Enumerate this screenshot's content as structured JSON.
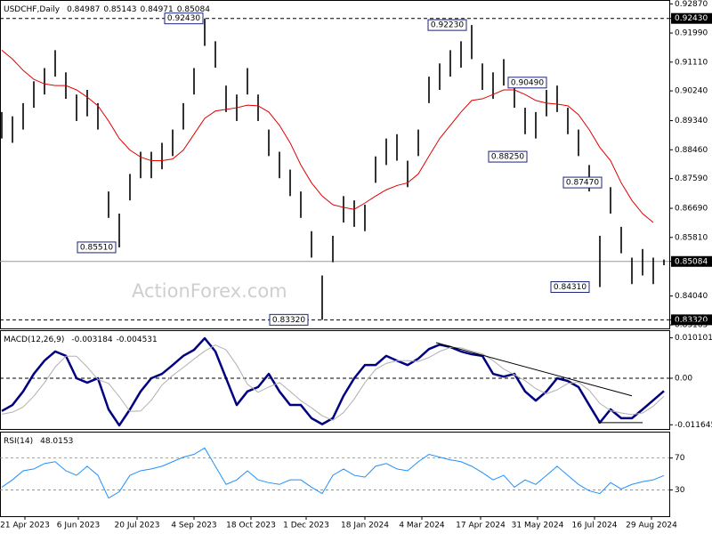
{
  "chart_data": [
    {
      "type": "ohlc",
      "title": "USDCHF,Daily",
      "header_values": [
        0.84987,
        0.85143,
        0.84971,
        0.85084
      ],
      "watermark": "ActionForex.com",
      "x": [
        0,
        6,
        12,
        18,
        24,
        30,
        36,
        42,
        48,
        54,
        60,
        66,
        72,
        78,
        84,
        90,
        96,
        102,
        108,
        114,
        120,
        126,
        132,
        138,
        144,
        150,
        156,
        162,
        168,
        174,
        180,
        186,
        192,
        198,
        204,
        210,
        216,
        222,
        228,
        234,
        240,
        246,
        252,
        258,
        264,
        270,
        276,
        282,
        288,
        294,
        300,
        306,
        312,
        318,
        324,
        330,
        336,
        342,
        348,
        354,
        360,
        366,
        372
      ],
      "high": [
        0.896,
        0.8947,
        0.8987,
        0.9053,
        0.9093,
        0.9147,
        0.908,
        0.9013,
        0.9027,
        0.8987,
        0.872,
        0.8653,
        0.8773,
        0.884,
        0.884,
        0.8867,
        0.8907,
        0.8987,
        0.9093,
        0.9243,
        0.9174,
        0.904,
        0.9013,
        0.9093,
        0.9013,
        0.8907,
        0.884,
        0.8786,
        0.872,
        0.86,
        0.8466,
        0.8586,
        0.8706,
        0.8693,
        0.868,
        0.8826,
        0.888,
        0.8893,
        0.8813,
        0.8907,
        0.9067,
        0.9107,
        0.9147,
        0.9174,
        0.9223,
        0.9107,
        0.908,
        0.912,
        0.9053,
        0.8973,
        0.896,
        0.9027,
        0.904,
        0.8973,
        0.8907,
        0.88,
        0.8586,
        0.8733,
        0.8613,
        0.852,
        0.8546,
        0.852,
        0.85143
      ],
      "low": [
        0.888,
        0.8867,
        0.8907,
        0.8973,
        0.9013,
        0.9067,
        0.9,
        0.8933,
        0.8947,
        0.8907,
        0.864,
        0.8551,
        0.8693,
        0.876,
        0.876,
        0.8787,
        0.8827,
        0.8907,
        0.9013,
        0.916,
        0.9094,
        0.896,
        0.8933,
        0.9013,
        0.8933,
        0.8827,
        0.876,
        0.8706,
        0.864,
        0.852,
        0.8332,
        0.8506,
        0.8626,
        0.8613,
        0.86,
        0.8746,
        0.88,
        0.8813,
        0.8733,
        0.8827,
        0.8987,
        0.9027,
        0.9067,
        0.9094,
        0.912,
        0.9027,
        0.9,
        0.904,
        0.8973,
        0.8893,
        0.888,
        0.8947,
        0.896,
        0.8893,
        0.8827,
        0.872,
        0.8431,
        0.8653,
        0.8533,
        0.844,
        0.8466,
        0.844,
        0.84971
      ],
      "bar_color": "#000000",
      "moving_average": {
        "color": "#e00000",
        "values": [
          0.9147,
          0.912,
          0.9086,
          0.9059,
          0.9045,
          0.904,
          0.904,
          0.9027,
          0.9005,
          0.8979,
          0.8933,
          0.888,
          0.8845,
          0.8824,
          0.8813,
          0.8813,
          0.8818,
          0.8845,
          0.8893,
          0.8941,
          0.8963,
          0.8968,
          0.8973,
          0.8981,
          0.8979,
          0.896,
          0.892,
          0.8867,
          0.88,
          0.8746,
          0.8706,
          0.868,
          0.8672,
          0.8666,
          0.8685,
          0.8706,
          0.8725,
          0.8738,
          0.8746,
          0.8773,
          0.8827,
          0.888,
          0.892,
          0.896,
          0.8995,
          0.9,
          0.9013,
          0.9027,
          0.9027,
          0.9013,
          0.8995,
          0.8987,
          0.8984,
          0.8979,
          0.8952,
          0.8907,
          0.8853,
          0.8813,
          0.8746,
          0.8693,
          0.8653,
          0.8626,
          null
        ]
      },
      "annotations": [
        {
          "label": "0.92430",
          "value": 0.9243,
          "x": 113
        },
        {
          "label": "0.92230",
          "value": 0.9223,
          "x": 261
        },
        {
          "label": "0.90490",
          "value": 0.9049,
          "x": 306
        },
        {
          "label": "0.88250",
          "value": 0.8825,
          "x": 295
        },
        {
          "label": "0.87470",
          "value": 0.8747,
          "x": 337
        },
        {
          "label": "0.85510",
          "value": 0.8551,
          "x": 64
        },
        {
          "label": "0.84310",
          "value": 0.8431,
          "x": 330
        },
        {
          "label": "0.83320",
          "value": 0.8332,
          "x": 172
        }
      ],
      "xlim": [
        -1,
        375
      ],
      "ylim": [
        0.8306,
        0.9296
      ],
      "yticks": [
        {
          "value": 0.9287,
          "label": "0.92870"
        },
        {
          "value": 0.9243,
          "label": "0.92430",
          "style": "dashed",
          "highlight": true
        },
        {
          "value": 0.9199,
          "label": "0.91990"
        },
        {
          "value": 0.9111,
          "label": "0.91110"
        },
        {
          "value": 0.9024,
          "label": "0.90240"
        },
        {
          "value": 0.8934,
          "label": "0.89340"
        },
        {
          "value": 0.8846,
          "label": "0.88460"
        },
        {
          "value": 0.8759,
          "label": "0.87590"
        },
        {
          "value": 0.8669,
          "label": "0.86690"
        },
        {
          "value": 0.8581,
          "label": "0.85810"
        },
        {
          "value": 0.85084,
          "style": "solid",
          "highlight": true
        },
        {
          "value": 0.8404,
          "label": "0.84040"
        },
        {
          "value": 0.8332,
          "label": "0.83320",
          "style": "dashed",
          "highlight": true
        },
        0.83165
      ],
      "grid": false
    },
    {
      "type": "macd",
      "title": "MACD(12,26,9)",
      "header_values": [
        -0.003184,
        -0.004531
      ],
      "x": [
        0,
        6,
        12,
        18,
        24,
        30,
        36,
        42,
        48,
        54,
        60,
        66,
        72,
        78,
        84,
        90,
        96,
        102,
        108,
        114,
        120,
        126,
        132,
        138,
        144,
        150,
        156,
        162,
        168,
        174,
        180,
        186,
        192,
        198,
        204,
        210,
        216,
        222,
        228,
        234,
        240,
        246,
        252,
        258,
        264,
        270,
        276,
        282,
        288,
        294,
        300,
        306,
        312,
        318,
        324,
        330,
        336,
        342,
        348,
        354,
        360,
        366,
        372
      ],
      "series": [
        {
          "color": "#000080",
          "width": 2.5,
          "values": [
            -0.0082,
            -0.0067,
            -0.0033,
            0.0011,
            0.0044,
            0.0067,
            0.0056,
            0,
            -0.0011,
            0,
            -0.0078,
            -0.0118,
            -0.0078,
            -0.0033,
            0,
            0.0011,
            0.0033,
            0.0056,
            0.0071,
            0.01,
            0.0067,
            0,
            -0.0067,
            -0.0033,
            -0.0022,
            0.0011,
            -0.0033,
            -0.0067,
            -0.0067,
            -0.01,
            -0.0115,
            -0.01,
            -0.0044,
            0,
            0.0033,
            0.0033,
            0.0056,
            0.0044,
            0.0033,
            0.0049,
            0.0073,
            0.0084,
            0.0078,
            0.0067,
            0.006,
            0.0056,
            0.0011,
            0.0004,
            0.0011,
            -0.0033,
            -0.0056,
            -0.0033,
            0,
            -0.0007,
            -0.0022,
            -0.0067,
            -0.0111,
            -0.0078,
            -0.01,
            -0.01,
            -0.0078,
            -0.0055,
            -0.0032
          ]
        },
        {
          "color": "#b0b0b0",
          "width": 1,
          "values": [
            -0.009,
            -0.0085,
            -0.0072,
            -0.0045,
            -0.0011,
            0.0028,
            0.0055,
            0.0055,
            0.0028,
            -0.0003,
            -0.0013,
            -0.0046,
            -0.0083,
            -0.0082,
            -0.0055,
            -0.0017,
            0.0007,
            0.0027,
            0.0048,
            0.0068,
            0.0083,
            0.0071,
            0.0033,
            -0.0015,
            -0.0035,
            -0.0022,
            -0.0011,
            -0.0033,
            -0.0056,
            -0.0074,
            -0.0094,
            -0.0105,
            -0.0086,
            -0.0052,
            -0.0011,
            0.0022,
            0.0037,
            0.0044,
            0.0044,
            0.0042,
            0.0052,
            0.0067,
            0.0077,
            0.0076,
            0.0068,
            0.0061,
            0.0044,
            0.0023,
            0.0009,
            -0.0006,
            -0.0026,
            -0.0039,
            -0.0029,
            -0.0013,
            -0.001,
            -0.003,
            -0.0063,
            -0.0081,
            -0.0087,
            -0.0091,
            -0.0087,
            -0.007,
            -0.0045
          ]
        }
      ],
      "trendlines": [
        {
          "x": [
            244,
            354
          ],
          "y": [
            0.0089,
            -0.0044
          ]
        },
        {
          "x": [
            335,
            360
          ],
          "y": [
            -0.0111,
            -0.0111
          ]
        }
      ],
      "xlim": [
        -1,
        375
      ],
      "ylim": [
        -0.0127,
        0.0118
      ],
      "yticks": [
        0.010101,
        {
          "value": 0,
          "label": "0.00",
          "style": "dashed"
        },
        -0.011645
      ],
      "grid": false
    },
    {
      "type": "line",
      "title": "RSI(14)",
      "header_values": [
        48.0153
      ],
      "x": [
        0,
        6,
        12,
        18,
        24,
        30,
        36,
        42,
        48,
        54,
        60,
        66,
        72,
        78,
        84,
        90,
        96,
        102,
        108,
        114,
        120,
        126,
        132,
        138,
        144,
        150,
        156,
        162,
        168,
        174,
        180,
        186,
        192,
        198,
        204,
        210,
        216,
        222,
        228,
        234,
        240,
        246,
        252,
        258,
        264,
        270,
        276,
        282,
        288,
        294,
        300,
        306,
        312,
        318,
        324,
        330,
        336,
        342,
        348,
        354,
        360,
        366,
        372
      ],
      "series": [
        {
          "color": "#1e90ff",
          "width": 1,
          "values": [
            33.4,
            42.6,
            54,
            56.3,
            63.1,
            65.4,
            54,
            48.3,
            59.7,
            48.3,
            19.7,
            27.7,
            48.3,
            54,
            56.3,
            59.7,
            65.4,
            71.1,
            74.6,
            82.6,
            59.7,
            36.9,
            42.6,
            54,
            42.6,
            39.1,
            36.9,
            42.6,
            42.6,
            33.4,
            25.4,
            48.3,
            56.3,
            48.3,
            46,
            59.7,
            63.1,
            56.3,
            54,
            65.4,
            74.6,
            71.1,
            67.7,
            65.4,
            59.7,
            51.7,
            42.6,
            48.3,
            33.4,
            42.6,
            36.9,
            48.3,
            59.7,
            48.3,
            36.9,
            28.9,
            25.4,
            39.1,
            31.1,
            36.9,
            40.3,
            42.6,
            48.0
          ]
        }
      ],
      "xlim": [
        -1,
        375
      ],
      "ylim": [
        -3,
        102
      ],
      "yticks": [
        70,
        30
      ],
      "grid": true,
      "xticks": [
        {
          "value": 13,
          "label": "21 Apr 2023"
        },
        {
          "value": 43,
          "label": "6 Jun 2023"
        },
        {
          "value": 76,
          "label": "20 Jul 2023"
        },
        {
          "value": 108,
          "label": "4 Sep 2023"
        },
        {
          "value": 140,
          "label": "18 Oct 2023"
        },
        {
          "value": 171,
          "label": "1 Dec 2023"
        },
        {
          "value": 204,
          "label": "18 Jan 2024"
        },
        {
          "value": 236,
          "label": "4 Mar 2024"
        },
        {
          "value": 269,
          "label": "17 Apr 2024"
        },
        {
          "value": 301,
          "label": "31 May 2024"
        },
        {
          "value": 333,
          "label": "16 Jul 2024"
        },
        {
          "value": 365,
          "label": "29 Aug 2024"
        }
      ]
    }
  ]
}
